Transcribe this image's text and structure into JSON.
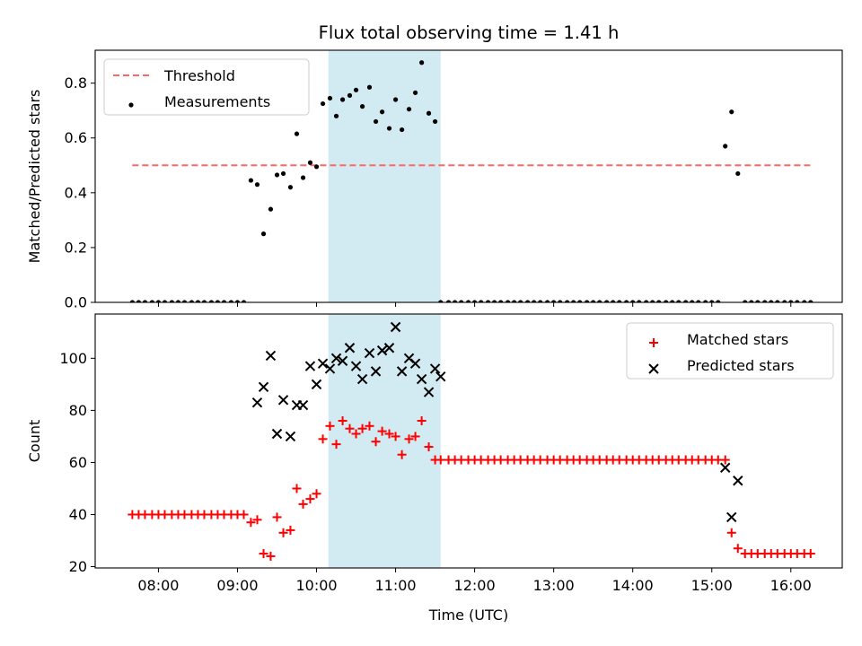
{
  "title": "Flux total observing time = 1.41 h",
  "colors": {
    "threshold": "#ff6666",
    "measurement": "#000000",
    "matched": "#ff0000",
    "predicted": "#000000",
    "highlight": "#add8e6"
  },
  "chart_data": [
    {
      "type": "scatter",
      "ylabel": "Matched/Predicted stars",
      "ylim": [
        0,
        0.92
      ],
      "yticks": [
        "0.0",
        "0.2",
        "0.4",
        "0.6",
        "0.8"
      ],
      "ytick_values": [
        0,
        0.2,
        0.4,
        0.6,
        0.8
      ],
      "xlim": [
        7.2,
        16.65
      ],
      "highlight_span": [
        10.15,
        11.57
      ],
      "legend": {
        "position": "upper-left",
        "entries": [
          "Threshold",
          "Measurements"
        ]
      },
      "threshold": {
        "name": "Threshold",
        "y": 0.5,
        "x_range": [
          7.67,
          16.25
        ]
      },
      "series": [
        {
          "name": "Measurements",
          "x": [
            7.67,
            7.75,
            7.83,
            7.92,
            8.0,
            8.08,
            8.17,
            8.25,
            8.33,
            8.42,
            8.5,
            8.58,
            8.67,
            8.75,
            8.83,
            8.92,
            9.0,
            9.08,
            9.17,
            9.25,
            9.33,
            9.42,
            9.5,
            9.58,
            9.67,
            9.75,
            9.83,
            9.92,
            10.0,
            10.08,
            10.17,
            10.25,
            10.33,
            10.42,
            10.5,
            10.58,
            10.67,
            10.75,
            10.83,
            10.92,
            11.0,
            11.08,
            11.17,
            11.25,
            11.33,
            11.42,
            11.5,
            11.57,
            11.67,
            11.75,
            11.83,
            11.92,
            12.0,
            12.08,
            12.17,
            12.25,
            12.33,
            12.42,
            12.5,
            12.58,
            12.67,
            12.75,
            12.83,
            12.92,
            13.0,
            13.08,
            13.17,
            13.25,
            13.33,
            13.42,
            13.5,
            13.58,
            13.67,
            13.75,
            13.83,
            13.92,
            14.0,
            14.08,
            14.17,
            14.25,
            14.33,
            14.42,
            14.5,
            14.58,
            14.67,
            14.75,
            14.83,
            14.92,
            15.0,
            15.08,
            15.17,
            15.25,
            15.33,
            15.42,
            15.5,
            15.58,
            15.67,
            15.75,
            15.83,
            15.92,
            16.0,
            16.08,
            16.17,
            16.25
          ],
          "y": [
            0,
            0,
            0,
            0,
            0,
            0,
            0,
            0,
            0,
            0,
            0,
            0,
            0,
            0,
            0,
            0,
            0,
            0,
            0.445,
            0.43,
            0.25,
            0.34,
            0.465,
            0.47,
            0.42,
            0.615,
            0.455,
            0.51,
            0.495,
            0.725,
            0.745,
            0.68,
            0.74,
            0.755,
            0.775,
            0.715,
            0.785,
            0.66,
            0.695,
            0.635,
            0.74,
            0.63,
            0.705,
            0.765,
            0.875,
            0.69,
            0.66,
            0,
            0,
            0,
            0,
            0,
            0,
            0,
            0,
            0,
            0,
            0,
            0,
            0,
            0,
            0,
            0,
            0,
            0,
            0,
            0,
            0,
            0,
            0,
            0,
            0,
            0,
            0,
            0,
            0,
            0,
            0,
            0,
            0,
            0,
            0,
            0,
            0,
            0,
            0,
            0,
            0,
            0,
            0,
            0.57,
            0.695,
            0.47,
            0,
            0,
            0,
            0,
            0,
            0,
            0,
            0,
            0,
            0,
            0
          ]
        }
      ]
    },
    {
      "type": "scatter",
      "xlabel": "Time (UTC)",
      "ylabel": "Count",
      "ylim": [
        19.5,
        117
      ],
      "yticks": [
        "20",
        "40",
        "60",
        "80",
        "100"
      ],
      "ytick_values": [
        20,
        40,
        60,
        80,
        100
      ],
      "xlim": [
        7.2,
        16.65
      ],
      "xticks": [
        "08:00",
        "09:00",
        "10:00",
        "11:00",
        "12:00",
        "13:00",
        "14:00",
        "15:00",
        "16:00"
      ],
      "xtick_values": [
        8,
        9,
        10,
        11,
        12,
        13,
        14,
        15,
        16
      ],
      "highlight_span": [
        10.15,
        11.57
      ],
      "legend": {
        "position": "upper-right",
        "entries": [
          "Matched stars",
          "Predicted stars"
        ]
      },
      "series": [
        {
          "name": "Matched stars",
          "marker": "+",
          "x": [
            7.67,
            7.75,
            7.83,
            7.92,
            8.0,
            8.08,
            8.17,
            8.25,
            8.33,
            8.42,
            8.5,
            8.58,
            8.67,
            8.75,
            8.83,
            8.92,
            9.0,
            9.08,
            9.17,
            9.25,
            9.33,
            9.42,
            9.5,
            9.58,
            9.67,
            9.75,
            9.83,
            9.92,
            10.0,
            10.08,
            10.17,
            10.25,
            10.33,
            10.42,
            10.5,
            10.58,
            10.67,
            10.75,
            10.83,
            10.92,
            11.0,
            11.08,
            11.17,
            11.25,
            11.33,
            11.42,
            11.5,
            11.57,
            11.67,
            11.75,
            11.83,
            11.92,
            12.0,
            12.08,
            12.17,
            12.25,
            12.33,
            12.42,
            12.5,
            12.58,
            12.67,
            12.75,
            12.83,
            12.92,
            13.0,
            13.08,
            13.17,
            13.25,
            13.33,
            13.42,
            13.5,
            13.58,
            13.67,
            13.75,
            13.83,
            13.92,
            14.0,
            14.08,
            14.17,
            14.25,
            14.33,
            14.42,
            14.5,
            14.58,
            14.67,
            14.75,
            14.83,
            14.92,
            15.0,
            15.08,
            15.17,
            15.25,
            15.33,
            15.42,
            15.5,
            15.58,
            15.67,
            15.75,
            15.83,
            15.92,
            16.0,
            16.08,
            16.17,
            16.25
          ],
          "y": [
            40,
            40,
            40,
            40,
            40,
            40,
            40,
            40,
            40,
            40,
            40,
            40,
            40,
            40,
            40,
            40,
            40,
            40,
            37,
            38,
            25,
            24,
            39,
            33,
            34,
            50,
            44,
            46,
            48,
            69,
            74,
            67,
            76,
            73,
            71,
            73,
            74,
            68,
            72,
            71,
            70,
            63,
            69,
            70,
            76,
            66,
            61,
            61,
            61,
            61,
            61,
            61,
            61,
            61,
            61,
            61,
            61,
            61,
            61,
            61,
            61,
            61,
            61,
            61,
            61,
            61,
            61,
            61,
            61,
            61,
            61,
            61,
            61,
            61,
            61,
            61,
            61,
            61,
            61,
            61,
            61,
            61,
            61,
            61,
            61,
            61,
            61,
            61,
            61,
            61,
            61,
            33,
            27,
            25,
            25,
            25,
            25,
            25,
            25,
            25,
            25,
            25,
            25,
            25
          ]
        },
        {
          "name": "Predicted stars",
          "marker": "x",
          "x": [
            9.25,
            9.33,
            9.42,
            9.5,
            9.58,
            9.67,
            9.75,
            9.83,
            9.92,
            10.0,
            10.08,
            10.17,
            10.25,
            10.33,
            10.42,
            10.5,
            10.58,
            10.67,
            10.75,
            10.83,
            10.92,
            11.0,
            11.08,
            11.17,
            11.25,
            11.33,
            11.42,
            11.5,
            11.57,
            15.17,
            15.25,
            15.33
          ],
          "y": [
            83,
            89,
            101,
            71,
            84,
            70,
            82,
            82,
            97,
            90,
            98,
            96,
            100,
            99,
            104,
            97,
            92,
            102,
            95,
            103,
            104,
            112,
            95,
            100,
            98,
            92,
            87,
            96,
            93,
            58,
            39,
            53
          ]
        }
      ]
    }
  ]
}
